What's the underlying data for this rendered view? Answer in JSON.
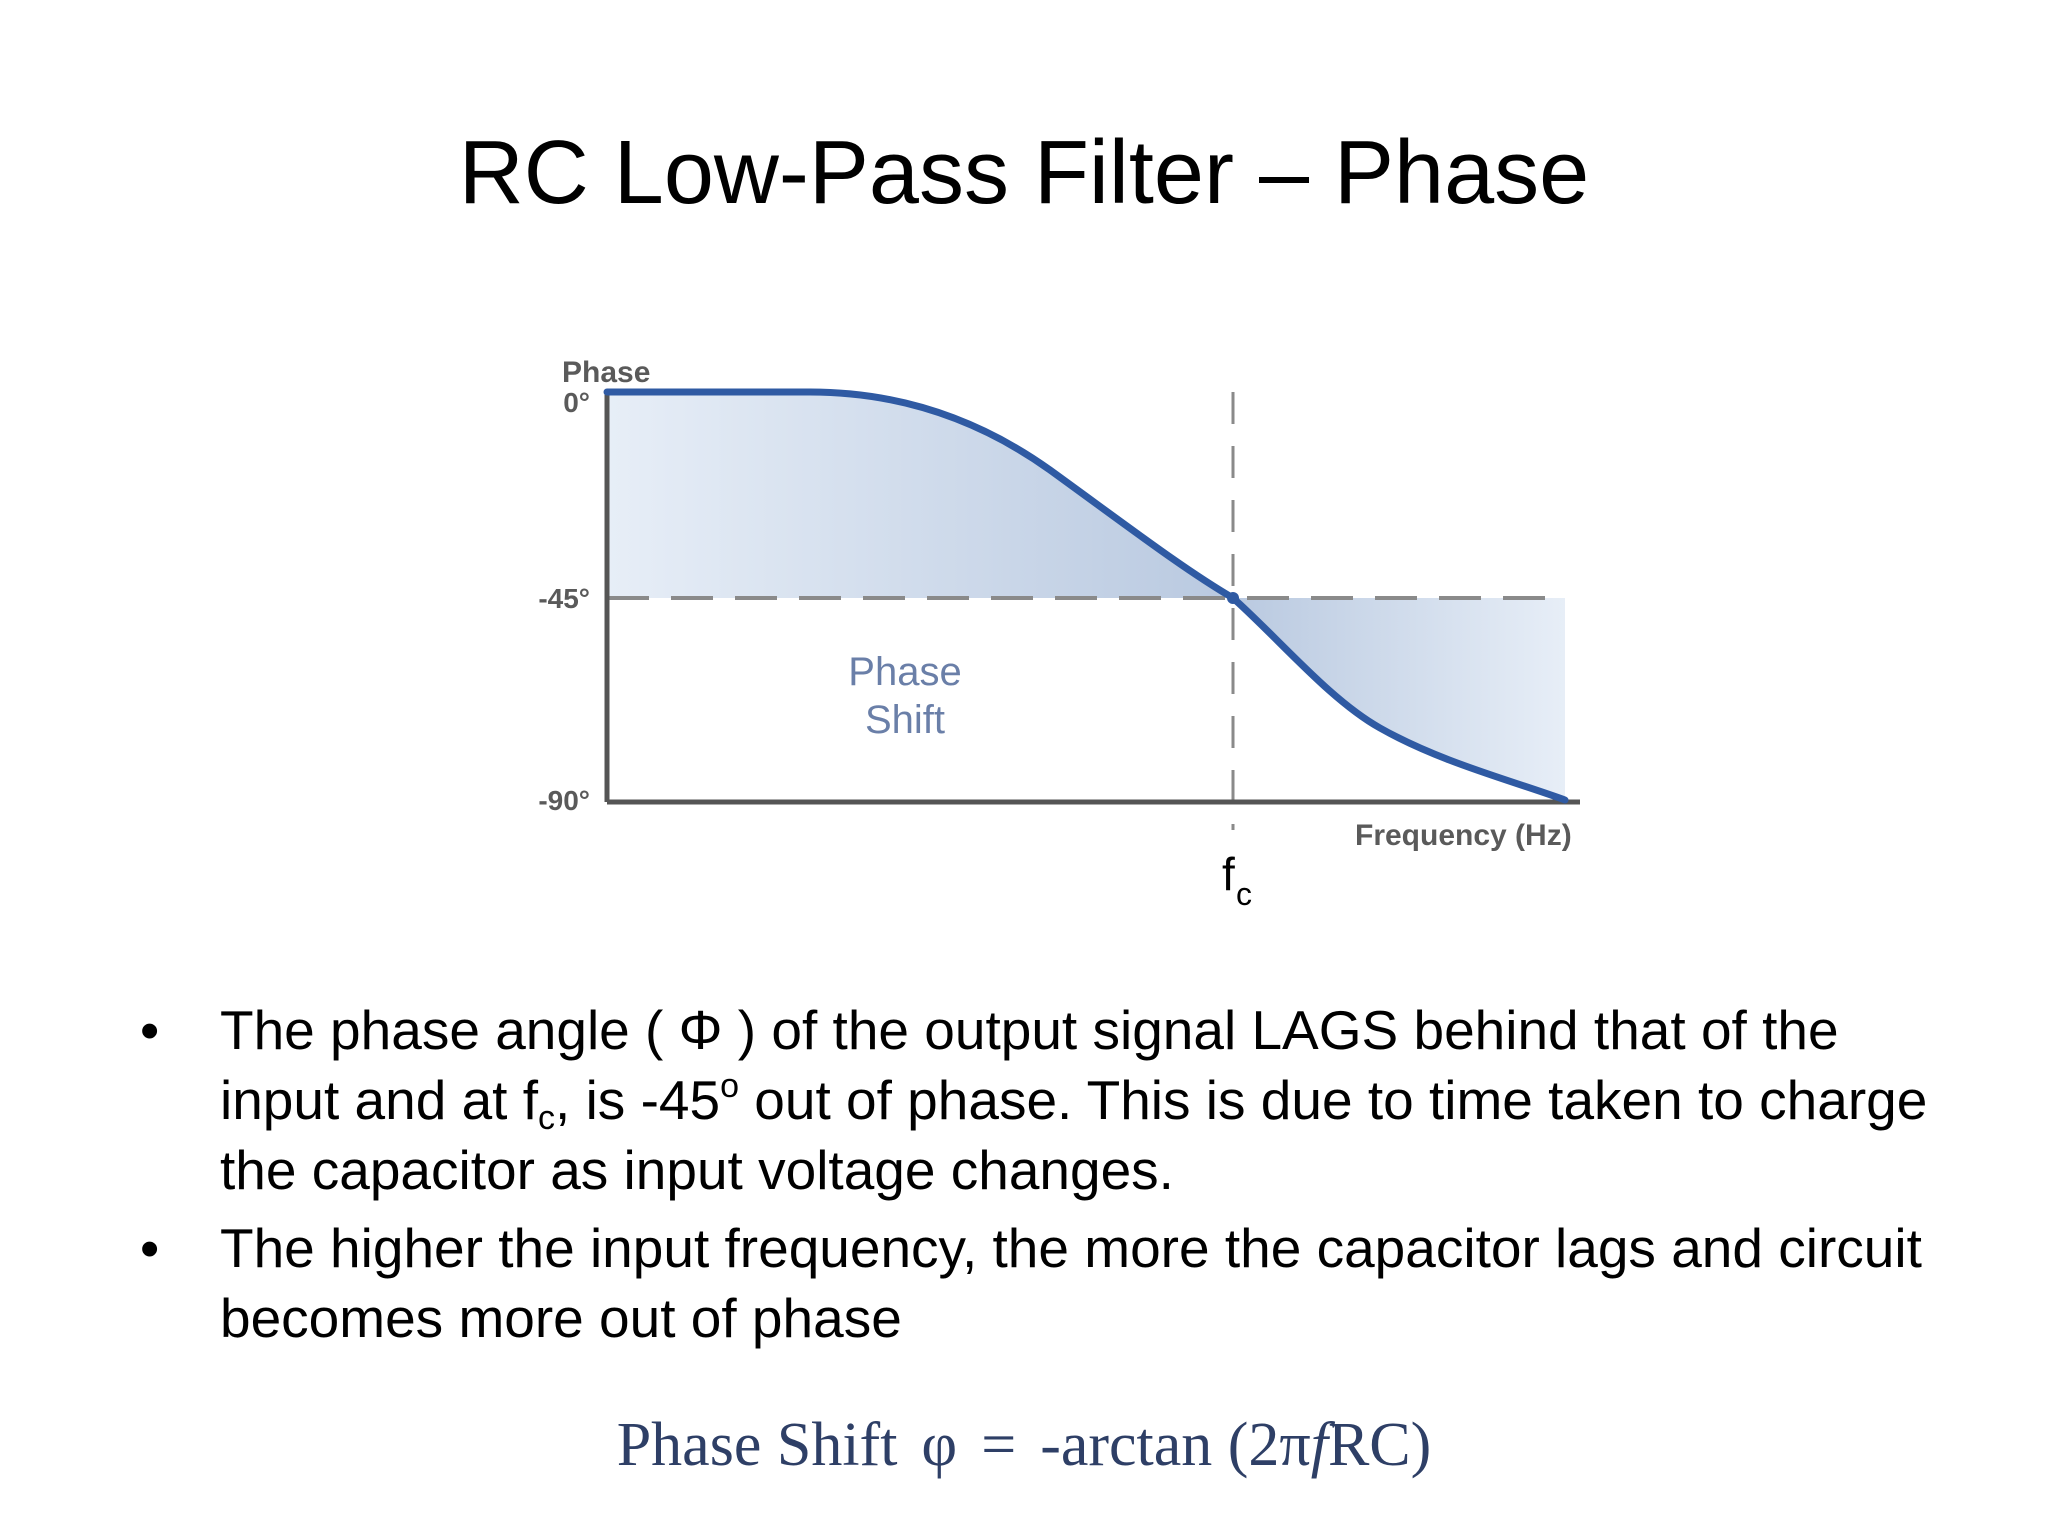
{
  "title": "RC Low-Pass Filter – Phase",
  "diagram": {
    "y_axis_title": "Phase",
    "y_ticks": [
      "0°",
      "-45°",
      "-90°"
    ],
    "x_axis_title": "Frequency (Hz)",
    "region_label_line1": "Phase",
    "region_label_line2": "Shift",
    "cutoff_label_main": "f",
    "cutoff_label_sub": "c",
    "colors": {
      "curve": "#2f5aa3",
      "fill_light": "#e7eef7",
      "fill_dark": "#b9c9e0",
      "dash": "#8a8a8a",
      "axis": "#555555",
      "label": "#5a5a5a",
      "region_label": "#6a7fa8"
    }
  },
  "bullets": [
    {
      "p1": "The phase angle ( Φ ) of the output signal LAGS behind that of the input and at f",
      "p1_sub": "c",
      "p2": ", is -45",
      "p2_sup": "o",
      "p3": " out of phase. This is due to time taken to charge the capacitor as input voltage changes."
    },
    {
      "p1": "The higher the input frequency, the more the capacitor lags and circuit becomes more out of phase"
    }
  ],
  "bullet_glyph": "•",
  "formula": {
    "lhs": "Phase Shift",
    "symbol": "φ",
    "equals": "=",
    "rhs_start": "-arctan (2π",
    "f": "f",
    "rhs_end": "RC)"
  }
}
